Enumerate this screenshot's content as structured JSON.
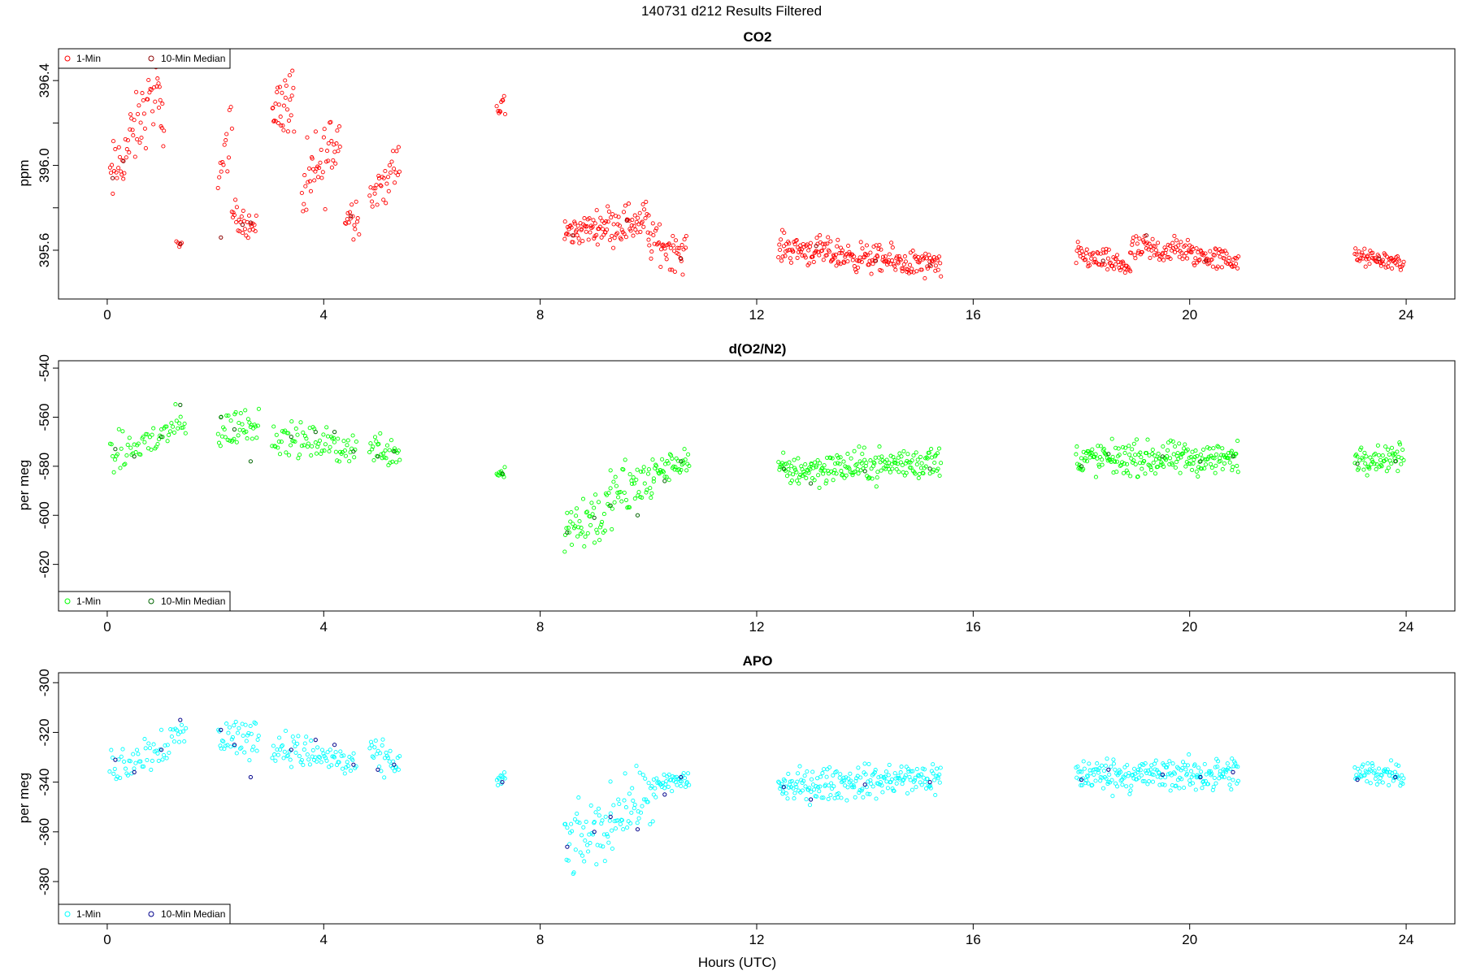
{
  "figure": {
    "title": "140731   d212   Results Filtered",
    "xlabel": "Hours (UTC)"
  },
  "colors": {
    "co2_1min": "#ff0000",
    "co2_median": "#8b0000",
    "o2n2_1min": "#00ff00",
    "o2n2_median": "#006400",
    "apo_1min": "#00ffff",
    "apo_median": "#00008b"
  },
  "chart_data": [
    {
      "type": "scatter",
      "title": "CO2",
      "ylabel": "ppm",
      "xlim": [
        -0.9,
        24.9
      ],
      "ylim": [
        395.37,
        396.55
      ],
      "xticks": [
        0,
        4,
        8,
        12,
        16,
        20,
        24
      ],
      "yticks": [
        395.6,
        396.0,
        396.4
      ],
      "ytick_labels": [
        "395.6",
        "396.0",
        "396.4"
      ],
      "minor_yticks": [
        395.8,
        396.2
      ],
      "legend": {
        "position": "top-left",
        "entries": [
          "1-Min",
          "10-Min Median"
        ]
      },
      "series": [
        {
          "name": "1-Min",
          "segments": [
            {
              "x0": 0.05,
              "x1": 0.95,
              "y0": 395.92,
              "y1": 396.38,
              "noise": 0.12,
              "n": 55
            },
            {
              "x0": 0.95,
              "x1": 1.05,
              "y0": 396.3,
              "y1": 396.1,
              "noise": 0.1,
              "n": 8
            },
            {
              "x0": 1.28,
              "x1": 1.38,
              "y0": 395.63,
              "y1": 395.63,
              "noise": 0.01,
              "n": 5
            },
            {
              "x0": 2.05,
              "x1": 2.3,
              "y0": 395.95,
              "y1": 396.18,
              "noise": 0.1,
              "n": 14
            },
            {
              "x0": 2.3,
              "x1": 2.75,
              "y0": 395.78,
              "y1": 395.7,
              "noise": 0.05,
              "n": 28
            },
            {
              "x0": 3.05,
              "x1": 3.45,
              "y0": 396.28,
              "y1": 396.3,
              "noise": 0.12,
              "n": 30
            },
            {
              "x0": 3.6,
              "x1": 4.3,
              "y0": 395.85,
              "y1": 396.15,
              "noise": 0.15,
              "n": 45
            },
            {
              "x0": 4.4,
              "x1": 4.65,
              "y0": 395.75,
              "y1": 395.78,
              "noise": 0.07,
              "n": 16
            },
            {
              "x0": 4.85,
              "x1": 5.4,
              "y0": 395.85,
              "y1": 396.0,
              "noise": 0.08,
              "n": 32
            },
            {
              "x0": 7.2,
              "x1": 7.35,
              "y0": 396.25,
              "y1": 396.3,
              "noise": 0.05,
              "n": 10
            },
            {
              "x0": 8.45,
              "x1": 9.2,
              "y0": 395.68,
              "y1": 395.72,
              "noise": 0.05,
              "n": 55
            },
            {
              "x0": 9.2,
              "x1": 10.0,
              "y0": 395.72,
              "y1": 395.74,
              "noise": 0.07,
              "n": 55
            },
            {
              "x0": 10.0,
              "x1": 10.7,
              "y0": 395.65,
              "y1": 395.58,
              "noise": 0.07,
              "n": 45
            },
            {
              "x0": 12.4,
              "x1": 13.5,
              "y0": 395.62,
              "y1": 395.58,
              "noise": 0.05,
              "n": 80
            },
            {
              "x0": 13.5,
              "x1": 15.4,
              "y0": 395.58,
              "y1": 395.52,
              "noise": 0.05,
              "n": 130
            },
            {
              "x0": 17.9,
              "x1": 18.9,
              "y0": 395.58,
              "y1": 395.52,
              "noise": 0.04,
              "n": 65
            },
            {
              "x0": 18.9,
              "x1": 20.0,
              "y0": 395.6,
              "y1": 395.6,
              "noise": 0.05,
              "n": 70
            },
            {
              "x0": 20.0,
              "x1": 20.9,
              "y0": 395.58,
              "y1": 395.55,
              "noise": 0.04,
              "n": 60
            },
            {
              "x0": 23.05,
              "x1": 23.95,
              "y0": 395.57,
              "y1": 395.54,
              "noise": 0.03,
              "n": 60
            }
          ]
        },
        {
          "name": "10-Min Median",
          "x": [
            0.1,
            0.3,
            1.35,
            2.1,
            2.5,
            2.65,
            4.5,
            8.6,
            9.6,
            10.6,
            13.1,
            14.2,
            15.2,
            18.4,
            19.2,
            20.3,
            23.5
          ],
          "y": [
            395.94,
            396.02,
            395.63,
            395.66,
            395.72,
            395.73,
            395.76,
            395.67,
            395.74,
            395.56,
            395.62,
            395.55,
            395.53,
            395.55,
            395.67,
            395.55,
            395.56
          ]
        }
      ]
    },
    {
      "type": "scatter",
      "title": "d(O2/N2)",
      "ylabel": "per meg",
      "xlim": [
        -0.9,
        24.9
      ],
      "ylim": [
        -639,
        -537
      ],
      "xticks": [
        0,
        4,
        8,
        12,
        16,
        20,
        24
      ],
      "yticks": [
        -620,
        -600,
        -580,
        -560,
        -540
      ],
      "ytick_labels": [
        "-620",
        "-600",
        "-580",
        "-560",
        "-540"
      ],
      "minor_yticks": [],
      "legend": {
        "position": "bottom-left",
        "entries": [
          "1-Min",
          "10-Min Median"
        ]
      },
      "series": [
        {
          "name": "1-Min",
          "segments": [
            {
              "x0": 0.05,
              "x1": 1.45,
              "y0": -577,
              "y1": -563,
              "noise": 6,
              "n": 60
            },
            {
              "x0": 2.05,
              "x1": 2.8,
              "y0": -566,
              "y1": -562,
              "noise": 6,
              "n": 40
            },
            {
              "x0": 3.05,
              "x1": 4.6,
              "y0": -568,
              "y1": -573,
              "noise": 5,
              "n": 75
            },
            {
              "x0": 4.85,
              "x1": 5.4,
              "y0": -572,
              "y1": -574,
              "noise": 5,
              "n": 30
            },
            {
              "x0": 7.2,
              "x1": 7.35,
              "y0": -583,
              "y1": -582,
              "noise": 2,
              "n": 10
            },
            {
              "x0": 8.45,
              "x1": 9.3,
              "y0": -605,
              "y1": -598,
              "noise": 10,
              "n": 50
            },
            {
              "x0": 9.3,
              "x1": 10.1,
              "y0": -593,
              "y1": -585,
              "noise": 9,
              "n": 45
            },
            {
              "x0": 10.1,
              "x1": 10.75,
              "y0": -583,
              "y1": -577,
              "noise": 4,
              "n": 40
            },
            {
              "x0": 12.4,
              "x1": 15.4,
              "y0": -582,
              "y1": -578,
              "noise": 5,
              "n": 200
            },
            {
              "x0": 17.9,
              "x1": 20.9,
              "y0": -577,
              "y1": -577,
              "noise": 5,
              "n": 210
            },
            {
              "x0": 23.05,
              "x1": 23.95,
              "y0": -577,
              "y1": -576,
              "noise": 4,
              "n": 60
            }
          ]
        },
        {
          "name": "10-Min Median",
          "x": [
            0.15,
            0.5,
            1.0,
            1.35,
            2.1,
            2.35,
            2.65,
            3.4,
            3.85,
            4.2,
            4.55,
            5.0,
            5.3,
            7.3,
            8.5,
            9.0,
            9.3,
            9.8,
            10.3,
            10.6,
            12.5,
            13.0,
            14.0,
            15.2,
            18.0,
            18.5,
            19.5,
            20.2,
            20.8,
            23.1,
            23.8
          ],
          "y": [
            -573,
            -576,
            -568,
            -555,
            -560,
            -565,
            -578,
            -568,
            -566,
            -566,
            -574,
            -576,
            -574,
            -583,
            -607,
            -601,
            -596,
            -600,
            -586,
            -578,
            -581,
            -587,
            -582,
            -581,
            -580,
            -575,
            -576,
            -578,
            -576,
            -579,
            -578
          ]
        }
      ]
    },
    {
      "type": "scatter",
      "title": "APO",
      "ylabel": "per meg",
      "xlim": [
        -0.9,
        24.9
      ],
      "ylim": [
        -397,
        -296
      ],
      "xticks": [
        0,
        4,
        8,
        12,
        16,
        20,
        24
      ],
      "yticks": [
        -380,
        -360,
        -340,
        -320,
        -300
      ],
      "ytick_labels": [
        "-380",
        "-360",
        "-340",
        "-320",
        "-300"
      ],
      "minor_yticks": [],
      "legend": {
        "position": "bottom-left",
        "entries": [
          "1-Min",
          "10-Min Median"
        ]
      },
      "series": [
        {
          "name": "1-Min",
          "segments": [
            {
              "x0": 0.05,
              "x1": 1.45,
              "y0": -335,
              "y1": -320,
              "noise": 6,
              "n": 60
            },
            {
              "x0": 2.05,
              "x1": 2.8,
              "y0": -322,
              "y1": -322,
              "noise": 6,
              "n": 40
            },
            {
              "x0": 3.05,
              "x1": 4.6,
              "y0": -325,
              "y1": -333,
              "noise": 5,
              "n": 75
            },
            {
              "x0": 4.85,
              "x1": 5.4,
              "y0": -330,
              "y1": -332,
              "noise": 5,
              "n": 30
            },
            {
              "x0": 7.2,
              "x1": 7.35,
              "y0": -340,
              "y1": -338,
              "noise": 2,
              "n": 10
            },
            {
              "x0": 8.45,
              "x1": 9.3,
              "y0": -366,
              "y1": -358,
              "noise": 10,
              "n": 50
            },
            {
              "x0": 9.3,
              "x1": 10.1,
              "y0": -353,
              "y1": -345,
              "noise": 9,
              "n": 45
            },
            {
              "x0": 10.1,
              "x1": 10.75,
              "y0": -343,
              "y1": -338,
              "noise": 4,
              "n": 40
            },
            {
              "x0": 12.4,
              "x1": 15.4,
              "y0": -342,
              "y1": -338,
              "noise": 5,
              "n": 200
            },
            {
              "x0": 17.9,
              "x1": 20.9,
              "y0": -337,
              "y1": -337,
              "noise": 5,
              "n": 210
            },
            {
              "x0": 23.05,
              "x1": 23.95,
              "y0": -337,
              "y1": -336,
              "noise": 4,
              "n": 60
            }
          ]
        },
        {
          "name": "10-Min Median",
          "x": [
            0.15,
            0.5,
            1.0,
            1.35,
            2.1,
            2.35,
            2.65,
            3.4,
            3.85,
            4.2,
            4.55,
            5.0,
            5.3,
            7.3,
            8.5,
            9.0,
            9.3,
            9.8,
            10.3,
            10.6,
            12.5,
            13.0,
            14.0,
            15.2,
            18.0,
            18.5,
            19.5,
            20.2,
            20.8,
            23.1,
            23.8
          ],
          "y": [
            -331,
            -336,
            -327,
            -315,
            -319,
            -325,
            -338,
            -327,
            -323,
            -325,
            -333,
            -335,
            -333,
            -340,
            -366,
            -360,
            -354,
            -359,
            -345,
            -338,
            -342,
            -347,
            -341,
            -340,
            -339,
            -335,
            -337,
            -338,
            -336,
            -339,
            -338
          ]
        }
      ]
    }
  ]
}
